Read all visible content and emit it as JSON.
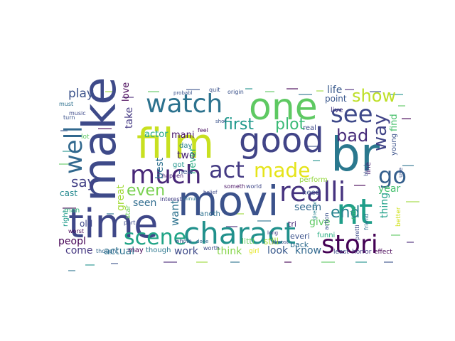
{
  "wordcloud": {
    "words": [
      {
        "text": "movi",
        "color": "#3b528b"
      },
      {
        "text": "film",
        "color": "#c8e020"
      },
      {
        "text": "make",
        "color": "#3e4a89"
      },
      {
        "text": "time",
        "color": "#3f4788"
      },
      {
        "text": "one",
        "color": "#5ec962"
      },
      {
        "text": "watch",
        "color": "#2c728e"
      },
      {
        "text": "good",
        "color": "#414487"
      },
      {
        "text": "br",
        "color": "#2a788e"
      },
      {
        "text": "nt",
        "color": "#1f9e89"
      },
      {
        "text": "charact",
        "color": "#21918c"
      },
      {
        "text": "stori",
        "color": "#440154"
      },
      {
        "text": "see",
        "color": "#3e4989"
      },
      {
        "text": "much",
        "color": "#482878"
      },
      {
        "text": "act",
        "color": "#443a83"
      },
      {
        "text": "realli",
        "color": "#46337f"
      },
      {
        "text": "scene",
        "color": "#20a486"
      },
      {
        "text": "well",
        "color": "#31688e"
      },
      {
        "text": "made",
        "color": "#e5e419"
      },
      {
        "text": "show",
        "color": "#bddf26"
      },
      {
        "text": "bad",
        "color": "#472c7a"
      },
      {
        "text": "go",
        "color": "#355f8d"
      },
      {
        "text": "first",
        "color": "#1f988b"
      },
      {
        "text": "plot",
        "color": "#3aba76"
      },
      {
        "text": "way",
        "color": "#414487"
      },
      {
        "text": "end",
        "color": "#26828e"
      },
      {
        "text": "even",
        "color": "#7ad151"
      },
      {
        "text": "say",
        "color": "#424086"
      },
      {
        "text": "play",
        "color": "#3b528b"
      },
      {
        "text": "life",
        "color": "#38598c"
      },
      {
        "text": "seen",
        "color": "#2f6c8e"
      },
      {
        "text": "love",
        "color": "#440154"
      },
      {
        "text": "take",
        "color": "#443983"
      },
      {
        "text": "actor",
        "color": "#22a884"
      },
      {
        "text": "mani",
        "color": "#481467"
      },
      {
        "text": "two",
        "color": "#482173"
      },
      {
        "text": "best",
        "color": "#2d708e"
      },
      {
        "text": "great",
        "color": "#a2da37"
      },
      {
        "text": "want",
        "color": "#2c728e"
      },
      {
        "text": "never",
        "color": "#27ad81"
      },
      {
        "text": "year",
        "color": "#46c06f"
      },
      {
        "text": "give",
        "color": "#5ec962"
      },
      {
        "text": "seem",
        "color": "#31688e"
      },
      {
        "text": "thing",
        "color": "#1fa088"
      },
      {
        "text": "find",
        "color": "#4ac16d"
      },
      {
        "text": "look",
        "color": "#38598c"
      },
      {
        "text": "work",
        "color": "#3e4a89"
      },
      {
        "text": "think",
        "color": "#86d549"
      },
      {
        "text": "know",
        "color": "#31688e"
      },
      {
        "text": "actual",
        "color": "#2c728e"
      },
      {
        "text": "come",
        "color": "#453781"
      },
      {
        "text": "peopl",
        "color": "#440154"
      },
      {
        "text": "cast",
        "color": "#23898e"
      },
      {
        "text": "old",
        "color": "#3f4788"
      },
      {
        "text": "point",
        "color": "#39568c"
      },
      {
        "text": "though",
        "color": "#2a768e"
      },
      {
        "text": "may",
        "color": "#440154"
      },
      {
        "text": "anoth",
        "color": "#2d708e"
      },
      {
        "text": "still",
        "color": "#a8db34"
      },
      {
        "text": "littl",
        "color": "#65cb5e"
      },
      {
        "text": "tri",
        "color": "#482878"
      },
      {
        "text": "perform",
        "color": "#95d840"
      },
      {
        "text": "need",
        "color": "#3b528b"
      },
      {
        "text": "everi",
        "color": "#3b528b"
      },
      {
        "text": "back",
        "color": "#2f6c8e"
      },
      {
        "text": "funni",
        "color": "#27ad81"
      },
      {
        "text": "live",
        "color": "#453781"
      },
      {
        "text": "real",
        "color": "#3e4a89"
      },
      {
        "text": "day",
        "color": "#26828e"
      },
      {
        "text": "got",
        "color": "#1f948c"
      },
      {
        "text": "new",
        "color": "#39568c"
      },
      {
        "text": "role",
        "color": "#35b779"
      },
      {
        "text": "line",
        "color": "#481f70"
      },
      {
        "text": "young",
        "color": "#3b528b"
      },
      {
        "text": "star",
        "color": "#6ccd5a"
      },
      {
        "text": "man",
        "color": "#31b57b"
      },
      {
        "text": "right",
        "color": "#1f9a8a"
      },
      {
        "text": "feel",
        "color": "#470d60"
      },
      {
        "text": "happen",
        "color": "#482475"
      },
      {
        "text": "interest",
        "color": "#433e85"
      },
      {
        "text": "someth",
        "color": "#471164"
      },
      {
        "text": "world",
        "color": "#3f4788"
      },
      {
        "text": "part",
        "color": "#3e4a89"
      },
      {
        "text": "better",
        "color": "#d0e11c"
      },
      {
        "text": "effect",
        "color": "#440154"
      },
      {
        "text": "horror",
        "color": "#443983"
      },
      {
        "text": "least",
        "color": "#3e4a89"
      },
      {
        "text": "girl",
        "color": "#e5e419"
      },
      {
        "text": "worth",
        "color": "#3e4a89"
      },
      {
        "text": "whole",
        "color": "#3b528b"
      },
      {
        "text": "done",
        "color": "#31688e"
      },
      {
        "text": "belief",
        "color": "#3e4989"
      },
      {
        "text": "minut",
        "color": "#2c728e"
      },
      {
        "text": "action",
        "color": "#3b528b"
      },
      {
        "text": "friend",
        "color": "#2c728e"
      },
      {
        "text": "pretti",
        "color": "#3e4a89"
      },
      {
        "text": "director",
        "color": "#26828e"
      },
      {
        "text": "long",
        "color": "#443983"
      },
      {
        "text": "almost",
        "color": "#3b528b"
      },
      {
        "text": "music",
        "color": "#3e4a89"
      },
      {
        "text": "must",
        "color": "#2d708e"
      },
      {
        "text": "turn",
        "color": "#3b528b"
      },
      {
        "text": "thought",
        "color": "#31688e"
      },
      {
        "text": "worst",
        "color": "#440154"
      },
      {
        "text": "lot",
        "color": "#5ec962"
      },
      {
        "text": "quit",
        "color": "#3b528b"
      },
      {
        "text": "origin",
        "color": "#3b528b"
      },
      {
        "text": "probabl",
        "color": "#3b528b"
      },
      {
        "text": "shot",
        "color": "#3b528b"
      },
      {
        "text": "black",
        "color": "#3b528b"
      },
      {
        "text": "use",
        "color": "#3b528b"
      }
    ]
  }
}
